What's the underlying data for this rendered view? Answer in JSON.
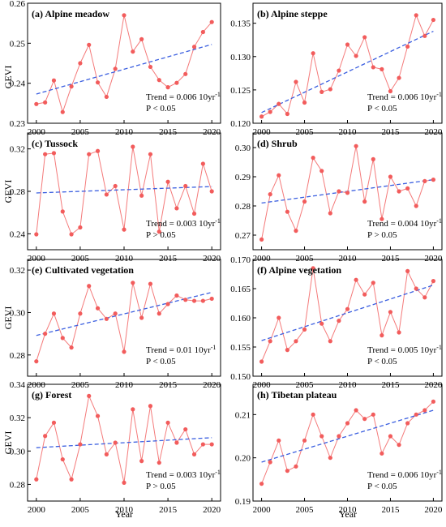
{
  "figure": {
    "ylabel": "GEVI",
    "xlabel": "Year"
  },
  "colors": {
    "series_line": "#f47a7a",
    "series_marker": "#f25c5c",
    "trend_line": "#3b5fe0",
    "axis": "#000000"
  },
  "chart_data": [
    {
      "type": "line",
      "title": "(a) Alpine meadow",
      "x": [
        2000,
        2001,
        2002,
        2003,
        2004,
        2005,
        2006,
        2007,
        2008,
        2009,
        2010,
        2011,
        2012,
        2013,
        2014,
        2015,
        2016,
        2017,
        2018,
        2019,
        2020
      ],
      "values": [
        0.2348,
        0.2352,
        0.2407,
        0.2328,
        0.2392,
        0.245,
        0.2496,
        0.2402,
        0.2366,
        0.2436,
        0.257,
        0.2479,
        0.251,
        0.2441,
        0.2408,
        0.239,
        0.2401,
        0.2423,
        0.2491,
        0.2528,
        0.2553
      ],
      "trend": [
        0.2373,
        0.2497
      ],
      "trend_text": "Trend = 0.006 10yr",
      "trend_sup": "-1",
      "p_text": "P < 0.05",
      "xlim": [
        1999,
        2021
      ],
      "ylim": [
        0.23,
        0.26
      ],
      "yticks": [
        0.23,
        0.24,
        0.25,
        0.26
      ],
      "ytick_labels": [
        "0.23",
        "0.24",
        "0.25",
        "0.26"
      ],
      "xticks": [
        2000,
        2005,
        2010,
        2015,
        2020
      ],
      "xtick_labels": [
        "2000",
        "2005",
        "2010",
        "2015",
        "2020"
      ]
    },
    {
      "type": "line",
      "title": "(b) Alpine steppe",
      "x": [
        2000,
        2001,
        2002,
        2003,
        2004,
        2005,
        2006,
        2007,
        2008,
        2009,
        2010,
        2011,
        2012,
        2013,
        2014,
        2015,
        2016,
        2017,
        2018,
        2019,
        2020
      ],
      "values": [
        0.121,
        0.1217,
        0.1229,
        0.1214,
        0.1262,
        0.1231,
        0.1305,
        0.1247,
        0.1251,
        0.1279,
        0.1318,
        0.1301,
        0.1329,
        0.1284,
        0.1281,
        0.1248,
        0.1268,
        0.1315,
        0.1362,
        0.1331,
        0.1355
      ],
      "trend": [
        0.1216,
        0.1338
      ],
      "trend_text": "Trend = 0.006 10yr",
      "trend_sup": "-1",
      "p_text": "P < 0.05",
      "xlim": [
        1999,
        2021
      ],
      "ylim": [
        0.12,
        0.138
      ],
      "yticks": [
        0.12,
        0.125,
        0.13,
        0.135
      ],
      "ytick_labels": [
        "0.120",
        "0.125",
        "0.130",
        "0.135"
      ],
      "xticks": [
        2000,
        2005,
        2010,
        2015,
        2020
      ],
      "xtick_labels": [
        "2000",
        "2005",
        "2010",
        "2015",
        "2020"
      ]
    },
    {
      "type": "line",
      "title": "(c) Tussock",
      "x": [
        2000,
        2001,
        2002,
        2003,
        2004,
        2005,
        2006,
        2007,
        2008,
        2009,
        2010,
        2011,
        2012,
        2013,
        2014,
        2015,
        2016,
        2017,
        2018,
        2019,
        2020
      ],
      "values": [
        0.2395,
        0.315,
        0.316,
        0.261,
        0.2395,
        0.246,
        0.315,
        0.318,
        0.277,
        0.285,
        0.244,
        0.322,
        0.276,
        0.315,
        0.242,
        0.289,
        0.264,
        0.285,
        0.259,
        0.306,
        0.28
      ],
      "trend": [
        0.2785,
        0.2845
      ],
      "trend_text": "Trend = 0.003 10yr",
      "trend_sup": "-1",
      "p_text": "P > 0.05",
      "xlim": [
        1999,
        2021
      ],
      "ylim": [
        0.225,
        0.335
      ],
      "yticks": [
        0.24,
        0.28,
        0.32
      ],
      "ytick_labels": [
        "0.24",
        "0.28",
        "0.32"
      ],
      "xticks": [
        2000,
        2005,
        2010,
        2015,
        2020
      ],
      "xtick_labels": [
        "2000",
        "2005",
        "2010",
        "2015",
        "2020"
      ]
    },
    {
      "type": "line",
      "title": "(d) Shrub",
      "x": [
        2000,
        2001,
        2002,
        2003,
        2004,
        2005,
        2006,
        2007,
        2008,
        2009,
        2010,
        2011,
        2012,
        2013,
        2014,
        2015,
        2016,
        2017,
        2018,
        2019,
        2020
      ],
      "values": [
        0.2685,
        0.284,
        0.2905,
        0.278,
        0.2715,
        0.2815,
        0.2965,
        0.292,
        0.2775,
        0.285,
        0.2845,
        0.3005,
        0.2815,
        0.296,
        0.2755,
        0.29,
        0.285,
        0.286,
        0.28,
        0.2885,
        0.289
      ],
      "trend": [
        0.281,
        0.289
      ],
      "trend_text": "Trend = 0.004 10yr",
      "trend_sup": "-1",
      "p_text": "P > 0.05",
      "xlim": [
        1999,
        2021
      ],
      "ylim": [
        0.265,
        0.305
      ],
      "yticks": [
        0.27,
        0.28,
        0.29,
        0.3
      ],
      "ytick_labels": [
        "0.27",
        "0.28",
        "0.29",
        "0.30"
      ],
      "xticks": [
        2000,
        2005,
        2010,
        2015,
        2020
      ],
      "xtick_labels": [
        "2000",
        "2005",
        "2010",
        "2015",
        "2020"
      ]
    },
    {
      "type": "line",
      "title": "(e) Cultivated vegetation",
      "x": [
        2000,
        2001,
        2002,
        2003,
        2004,
        2005,
        2006,
        2007,
        2008,
        2009,
        2010,
        2011,
        2012,
        2013,
        2014,
        2015,
        2016,
        2017,
        2018,
        2019,
        2020
      ],
      "values": [
        0.277,
        0.29,
        0.2995,
        0.288,
        0.2835,
        0.2995,
        0.3125,
        0.302,
        0.297,
        0.2995,
        0.2815,
        0.314,
        0.2975,
        0.3135,
        0.2995,
        0.304,
        0.308,
        0.306,
        0.3055,
        0.3055,
        0.3065
      ],
      "trend": [
        0.2892,
        0.3095
      ],
      "trend_text": "Trend = 0.01 10yr",
      "trend_sup": "-1",
      "p_text": "P < 0.05",
      "xlim": [
        1999,
        2021
      ],
      "ylim": [
        0.27,
        0.325
      ],
      "yticks": [
        0.28,
        0.3,
        0.32
      ],
      "ytick_labels": [
        "0.28",
        "0.30",
        "0.32"
      ],
      "xticks": [
        2000,
        2005,
        2010,
        2015,
        2020
      ],
      "xtick_labels": [
        "2000",
        "2005",
        "2010",
        "2015",
        "2020"
      ]
    },
    {
      "type": "line",
      "title": "(f) Alpine vegetation",
      "x": [
        2000,
        2001,
        2002,
        2003,
        2004,
        2005,
        2006,
        2007,
        2008,
        2009,
        2010,
        2011,
        2012,
        2013,
        2014,
        2015,
        2016,
        2017,
        2018,
        2019,
        2020
      ],
      "values": [
        0.1525,
        0.156,
        0.16,
        0.1545,
        0.156,
        0.158,
        0.1685,
        0.159,
        0.156,
        0.1595,
        0.1615,
        0.1665,
        0.164,
        0.166,
        0.157,
        0.161,
        0.1575,
        0.168,
        0.165,
        0.1635,
        0.1663
      ],
      "trend": [
        0.1561,
        0.1656
      ],
      "trend_text": "Trend = 0.005 10yr",
      "trend_sup": "-1",
      "p_text": "P < 0.05",
      "xlim": [
        1999,
        2021
      ],
      "ylim": [
        0.15,
        0.17
      ],
      "yticks": [
        0.15,
        0.155,
        0.16,
        0.165,
        0.17
      ],
      "ytick_labels": [
        "0.150",
        "0.155",
        "0.160",
        "0.165",
        "0.170"
      ],
      "xticks": [
        2000,
        2005,
        2010,
        2015,
        2020
      ],
      "xtick_labels": [
        "2000",
        "2005",
        "2010",
        "2015",
        "2020"
      ]
    },
    {
      "type": "line",
      "title": "(g) Forest",
      "x": [
        2000,
        2001,
        2002,
        2003,
        2004,
        2005,
        2006,
        2007,
        2008,
        2009,
        2010,
        2011,
        2012,
        2013,
        2014,
        2015,
        2016,
        2017,
        2018,
        2019,
        2020
      ],
      "values": [
        0.283,
        0.309,
        0.317,
        0.295,
        0.283,
        0.304,
        0.333,
        0.321,
        0.298,
        0.305,
        0.281,
        0.325,
        0.294,
        0.327,
        0.293,
        0.317,
        0.305,
        0.313,
        0.298,
        0.304,
        0.304
      ],
      "trend": [
        0.302,
        0.308
      ],
      "trend_text": "Trend = 0.003 10yr",
      "trend_sup": "-1",
      "p_text": "P > 0.05",
      "xlim": [
        1999,
        2021
      ],
      "ylim": [
        0.27,
        0.34
      ],
      "yticks": [
        0.28,
        0.3,
        0.32,
        0.34
      ],
      "ytick_labels": [
        "0.28",
        "0.30",
        "0.32",
        "0.34"
      ],
      "xticks": [
        2000,
        2005,
        2010,
        2015,
        2020
      ],
      "xtick_labels": [
        "2000",
        "2005",
        "2010",
        "2015",
        "2020"
      ]
    },
    {
      "type": "line",
      "title": "(h) Tibetan plateau",
      "x": [
        2000,
        2001,
        2002,
        2003,
        2004,
        2005,
        2006,
        2007,
        2008,
        2009,
        2010,
        2011,
        2012,
        2013,
        2014,
        2015,
        2016,
        2017,
        2018,
        2019,
        2020
      ],
      "values": [
        0.194,
        0.199,
        0.204,
        0.197,
        0.198,
        0.204,
        0.21,
        0.205,
        0.2,
        0.205,
        0.208,
        0.211,
        0.209,
        0.21,
        0.201,
        0.205,
        0.203,
        0.208,
        0.21,
        0.211,
        0.213
      ],
      "trend": [
        0.199,
        0.211
      ],
      "trend_text": "Trend = 0.006 10yr",
      "trend_sup": "-1",
      "p_text": "P < 0.05",
      "xlim": [
        1999,
        2021
      ],
      "ylim": [
        0.19,
        0.217
      ],
      "yticks": [
        0.19,
        0.2,
        0.21
      ],
      "ytick_labels": [
        "0.19",
        "0.20",
        "0.21"
      ],
      "xticks": [
        2000,
        2005,
        2010,
        2015,
        2020
      ],
      "xtick_labels": [
        "2000",
        "2005",
        "2010",
        "2015",
        "2020"
      ]
    }
  ]
}
